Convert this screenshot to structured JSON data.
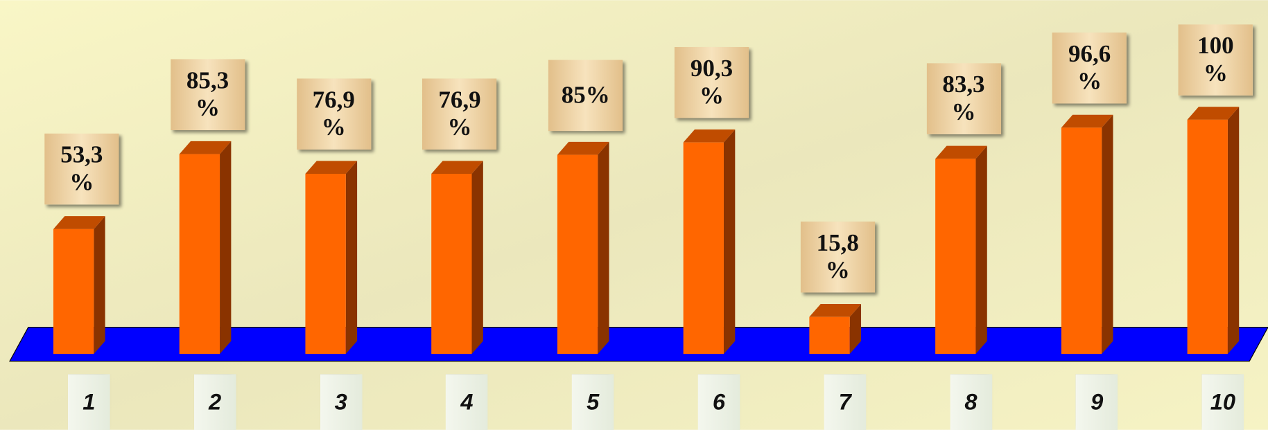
{
  "chart_data": {
    "type": "bar",
    "categories": [
      "1",
      "2",
      "3",
      "4",
      "5",
      "6",
      "7",
      "8",
      "9",
      "10"
    ],
    "values": [
      53.3,
      85.3,
      76.9,
      76.9,
      85,
      90.3,
      15.8,
      83.3,
      96.6,
      100
    ],
    "value_labels": [
      "53,3 %",
      "85,3 %",
      "76,9 %",
      "76,9 %",
      "85%",
      "90,3 %",
      "15,8 %",
      "83,3 %",
      "96,6 %",
      "100 %"
    ],
    "color": "#ff6600",
    "floor_color": "#0000ff",
    "ylim": [
      0,
      100
    ]
  }
}
